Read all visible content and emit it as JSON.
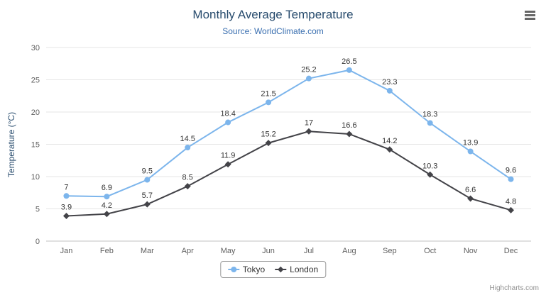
{
  "chart_data": {
    "type": "line",
    "title": "Monthly Average Temperature",
    "subtitle": "Source: WorldClimate.com",
    "xlabel": "",
    "ylabel": "Temperature (°C)",
    "ylim": [
      0,
      30
    ],
    "ytick_interval": 5,
    "grid": true,
    "legend_position": "bottom",
    "data_labels": true,
    "categories": [
      "Jan",
      "Feb",
      "Mar",
      "Apr",
      "May",
      "Jun",
      "Jul",
      "Aug",
      "Sep",
      "Oct",
      "Nov",
      "Dec"
    ],
    "series": [
      {
        "name": "Tokyo",
        "color": "#7cb5ec",
        "marker": "circle",
        "values": [
          7,
          6.9,
          9.5,
          14.5,
          18.4,
          21.5,
          25.2,
          26.5,
          23.3,
          18.3,
          13.9,
          9.6
        ]
      },
      {
        "name": "London",
        "color": "#434348",
        "marker": "diamond",
        "values": [
          3.9,
          4.2,
          5.7,
          8.5,
          11.9,
          15.2,
          17,
          16.6,
          14.2,
          10.3,
          6.6,
          4.8
        ]
      }
    ]
  },
  "credits": "Highcharts.com",
  "icons": {
    "context_menu": "hamburger-icon"
  },
  "colors": {
    "title": "#274b6d",
    "subtitle": "#3a6fb0",
    "grid": "#e6e6e6",
    "axis_line": "#c0c0c0",
    "tick_label": "#606060",
    "data_label": "#333333"
  }
}
